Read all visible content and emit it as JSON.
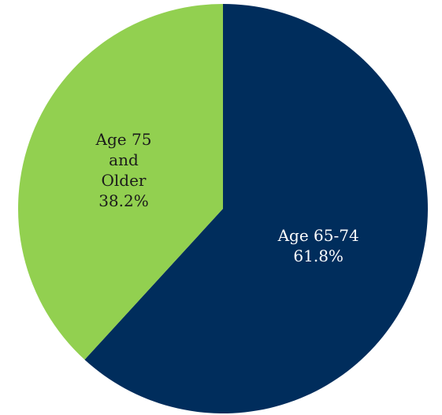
{
  "chart_data": {
    "type": "pie",
    "title": "",
    "slices": [
      {
        "label_lines": [
          "Age 65-74",
          "61.8%"
        ],
        "category": "Age 65-74",
        "value": 61.8,
        "color": "#002d5c",
        "label_color": "#ffffff"
      },
      {
        "label_lines": [
          "Age 75",
          "and",
          "Older",
          "38.2%"
        ],
        "category": "Age 75 and Older",
        "value": 38.2,
        "color": "#92d050",
        "label_color": "#1a1a1a"
      }
    ],
    "start_angle_deg": 0,
    "direction": "clockwise",
    "legend": "none"
  }
}
